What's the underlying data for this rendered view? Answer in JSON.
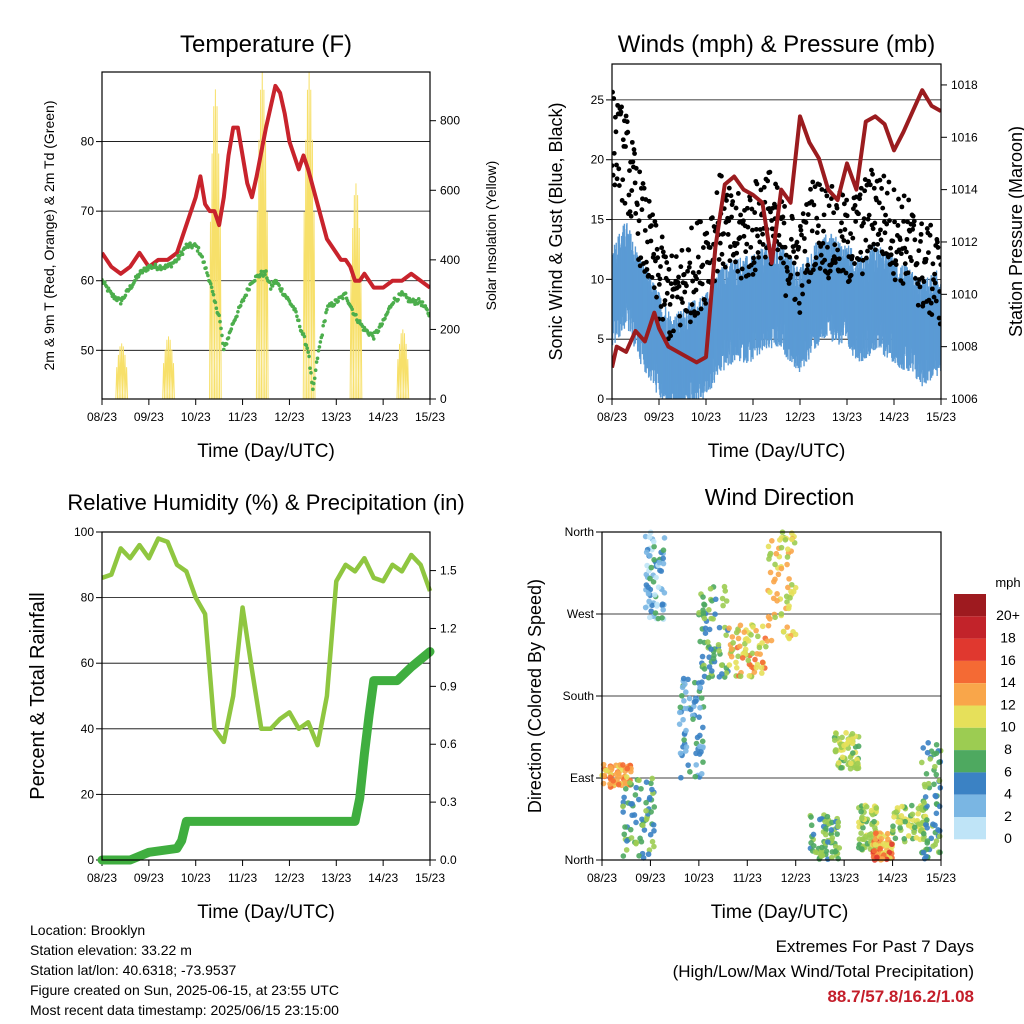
{
  "chart_data": [
    {
      "type": "line",
      "title": "Temperature (F)",
      "xlabel": "Time (Day/UTC)",
      "ylabel": "2m & 9m T (Red, Orange) & 2m Td (Green)",
      "y2label": "Solar Insolation (Yellow)",
      "x_ticks": [
        "08/23",
        "09/23",
        "10/23",
        "11/23",
        "12/23",
        "13/23",
        "14/23",
        "15/23"
      ],
      "ylim": [
        43,
        90
      ],
      "y_ticks": [
        50,
        60,
        70,
        80
      ],
      "y2lim": [
        0,
        940
      ],
      "y2_ticks": [
        0,
        200,
        400,
        600,
        800
      ],
      "grid": "horizontal",
      "colors": {
        "temp": "#c8232c",
        "dewpoint": "#4cae4c",
        "solar": "#f7e06a"
      },
      "series": [
        {
          "role": "temp",
          "x": [
            0,
            0.2,
            0.4,
            0.6,
            0.8,
            1,
            1.2,
            1.4,
            1.6,
            1.8,
            2,
            2.1,
            2.2,
            2.3,
            2.4,
            2.5,
            2.6,
            2.7,
            2.8,
            2.9,
            3,
            3.1,
            3.2,
            3.3,
            3.5,
            3.7,
            3.8,
            3.9,
            4,
            4.1,
            4.2,
            4.3,
            4.4,
            4.6,
            4.8,
            5,
            5.1,
            5.2,
            5.3,
            5.4,
            5.5,
            5.6,
            5.8,
            6,
            6.2,
            6.4,
            6.6,
            6.8,
            7
          ],
          "y": [
            64,
            62,
            61,
            62,
            64,
            62,
            63,
            63,
            64,
            68,
            72,
            75,
            71,
            70,
            70,
            68,
            72,
            78,
            82,
            82,
            78,
            74,
            72,
            75,
            82,
            88,
            87,
            84,
            80,
            78,
            76,
            78,
            76,
            71,
            66,
            64,
            63,
            63,
            62,
            60,
            60,
            61,
            59,
            59,
            60,
            60,
            61,
            60,
            59
          ]
        },
        {
          "role": "dewpoint",
          "x": [
            0,
            0.2,
            0.4,
            0.6,
            0.8,
            1,
            1.2,
            1.4,
            1.6,
            1.8,
            2,
            2.1,
            2.2,
            2.3,
            2.4,
            2.5,
            2.6,
            2.7,
            2.8,
            3,
            3.2,
            3.4,
            3.5,
            3.6,
            3.7,
            3.8,
            3.9,
            4,
            4.1,
            4.2,
            4.3,
            4.4,
            4.5,
            4.6,
            4.8,
            5,
            5.2,
            5.4,
            5.6,
            5.8,
            6,
            6.2,
            6.4,
            6.6,
            6.8,
            7
          ],
          "y": [
            60,
            58,
            57,
            59,
            61,
            62,
            62,
            62,
            63,
            65,
            65,
            64,
            62,
            60,
            57,
            55,
            50,
            52,
            54,
            57,
            60,
            61,
            61,
            59,
            60,
            59,
            58,
            57,
            56,
            54,
            52,
            50,
            44,
            49,
            56,
            57,
            58,
            55,
            53,
            52,
            54,
            57,
            58,
            57,
            57,
            55
          ]
        }
      ],
      "solar_days": [
        {
          "day": 0,
          "peak": 160
        },
        {
          "day": 1,
          "peak": 180
        },
        {
          "day": 2,
          "peak": 890
        },
        {
          "day": 3,
          "peak": 940
        },
        {
          "day": 4,
          "peak": 940
        },
        {
          "day": 5,
          "peak": 620
        },
        {
          "day": 6,
          "peak": 200
        },
        {
          "day": 7,
          "peak": 200
        }
      ]
    },
    {
      "type": "scatter",
      "title": "Winds (mph) & Pressure (mb)",
      "xlabel": "Time (Day/UTC)",
      "ylabel": "Sonic Wind & Gust (Blue, Black)",
      "y2label": "Station Pressure (Maroon)",
      "x_ticks": [
        "08/23",
        "09/23",
        "10/23",
        "11/23",
        "12/23",
        "13/23",
        "14/23",
        "15/23"
      ],
      "ylim": [
        0,
        28
      ],
      "y_ticks": [
        0,
        5,
        10,
        15,
        20,
        25
      ],
      "y2lim": [
        1006,
        1018.8
      ],
      "y2_ticks": [
        1006,
        1008,
        1010,
        1012,
        1014,
        1016,
        1018
      ],
      "grid": "horizontal",
      "colors": {
        "wind": "#5b9bd5",
        "gust": "#000000",
        "pressure": "#9b1c1f"
      },
      "wind_profile": {
        "x": [
          0,
          0.3,
          0.6,
          1,
          1.3,
          1.6,
          2,
          2.3,
          2.6,
          3,
          3.3,
          3.6,
          4,
          4.3,
          4.6,
          5,
          5.3,
          5.6,
          6,
          6.3,
          6.6,
          7
        ],
        "y": [
          10,
          12,
          9,
          6,
          4,
          5,
          6,
          8,
          9,
          9,
          10,
          10,
          8,
          10,
          11,
          10,
          9,
          10,
          9,
          8,
          7,
          8
        ]
      },
      "gust_profile": {
        "x": [
          0,
          0.3,
          0.6,
          1,
          1.3,
          1.6,
          2,
          2.3,
          2.6,
          3,
          3.3,
          3.6,
          4,
          4.3,
          4.6,
          5,
          5.3,
          5.6,
          6,
          6.3,
          6.6,
          7
        ],
        "y": [
          22,
          20,
          15,
          10,
          8,
          10,
          12,
          15,
          13,
          14,
          16,
          13,
          11,
          15,
          14,
          13,
          14,
          16,
          14,
          13,
          11,
          10
        ]
      },
      "pressure": {
        "x": [
          0,
          0.1,
          0.3,
          0.5,
          0.7,
          0.9,
          1,
          1.2,
          1.4,
          1.6,
          1.8,
          2,
          2.2,
          2.4,
          2.6,
          2.8,
          3,
          3.2,
          3.4,
          3.6,
          3.8,
          4,
          4.2,
          4.4,
          4.6,
          4.8,
          5,
          5.2,
          5.4,
          5.6,
          5.8,
          6,
          6.2,
          6.4,
          6.6,
          6.8,
          7
        ],
        "y": [
          1007.2,
          1008,
          1007.8,
          1008.6,
          1008.2,
          1009.3,
          1008.7,
          1008,
          1007.8,
          1007.6,
          1007.4,
          1007.6,
          1011.8,
          1014.2,
          1014.5,
          1014,
          1013.8,
          1013.5,
          1011.2,
          1014,
          1013.5,
          1016.8,
          1015.8,
          1015.2,
          1014,
          1013.6,
          1015,
          1014,
          1016.6,
          1016.8,
          1016.5,
          1015.5,
          1016.2,
          1017,
          1017.8,
          1017.2,
          1017
        ]
      }
    },
    {
      "type": "line",
      "title": "Relative Humidity (%) & Precipitation (in)",
      "xlabel": "Time (Day/UTC)",
      "ylabel": "Percent & Total Rainfall",
      "x_ticks": [
        "08/23",
        "09/23",
        "10/23",
        "11/23",
        "12/23",
        "13/23",
        "14/23",
        "15/23"
      ],
      "ylim": [
        0,
        100
      ],
      "y_ticks": [
        0,
        20,
        40,
        60,
        80,
        100
      ],
      "y2lim": [
        0,
        1.7
      ],
      "y2_ticks": [
        "0.0",
        "0.3",
        "0.6",
        "0.9",
        "1.2",
        "1.5"
      ],
      "grid": "horizontal",
      "colors": {
        "rh": "#8fc640",
        "precip": "#3fae3f"
      },
      "series": [
        {
          "name": "rh",
          "x": [
            0,
            0.2,
            0.4,
            0.6,
            0.8,
            1,
            1.2,
            1.4,
            1.6,
            1.8,
            2,
            2.2,
            2.4,
            2.6,
            2.8,
            3,
            3.2,
            3.4,
            3.6,
            3.8,
            4,
            4.2,
            4.4,
            4.6,
            4.8,
            5,
            5.2,
            5.4,
            5.6,
            5.8,
            6,
            6.2,
            6.4,
            6.6,
            6.8,
            7
          ],
          "y": [
            86,
            87,
            95,
            92,
            96,
            92,
            98,
            97,
            90,
            88,
            80,
            75,
            40,
            36,
            50,
            77,
            58,
            40,
            40,
            43,
            45,
            40,
            42,
            35,
            50,
            85,
            90,
            88,
            92,
            86,
            85,
            90,
            88,
            93,
            90,
            82
          ]
        },
        {
          "name": "precip",
          "x": [
            0,
            0.6,
            0.8,
            1.0,
            1.6,
            1.7,
            1.8,
            2.0,
            2.2,
            2.4,
            3,
            4,
            5,
            5.4,
            5.5,
            5.6,
            5.7,
            5.8,
            6,
            6.3,
            6.6,
            6.8,
            7
          ],
          "y": [
            0,
            0,
            0.02,
            0.04,
            0.06,
            0.1,
            0.2,
            0.2,
            0.2,
            0.2,
            0.2,
            0.2,
            0.2,
            0.2,
            0.32,
            0.55,
            0.75,
            0.93,
            0.93,
            0.93,
            1.0,
            1.04,
            1.08
          ]
        }
      ]
    },
    {
      "type": "scatter",
      "title": "Wind Direction",
      "xlabel": "Time (Day/UTC)",
      "ylabel": "Direction (Colored By Speed)",
      "x_ticks": [
        "08/23",
        "09/23",
        "10/23",
        "11/23",
        "12/23",
        "13/23",
        "14/23",
        "15/23"
      ],
      "ylim": [
        0,
        360
      ],
      "y_ticks": [
        {
          "v": 0,
          "label": "North"
        },
        {
          "v": 90,
          "label": "East"
        },
        {
          "v": 180,
          "label": "South"
        },
        {
          "v": 270,
          "label": "West"
        },
        {
          "v": 360,
          "label": "North"
        }
      ],
      "grid": "horizontal",
      "colorbar": {
        "unit": "mph",
        "labels": [
          "20+",
          "18",
          "16",
          "14",
          "12",
          "10",
          "8",
          "6",
          "4",
          "2",
          "0"
        ],
        "colors": [
          "#9e1a1f",
          "#c2232a",
          "#e0382f",
          "#f46a34",
          "#f9a64a",
          "#e6e05a",
          "#9ccc52",
          "#4ea960",
          "#3b82c4",
          "#7ab6e3",
          "#bfe4f7"
        ]
      },
      "clusters": [
        {
          "x": [
            0,
            0.6
          ],
          "dir": [
            80,
            105
          ],
          "speed": [
            10,
            15
          ]
        },
        {
          "x": [
            0.4,
            1.1
          ],
          "dir": [
            0,
            90
          ],
          "speed": [
            3,
            8
          ]
        },
        {
          "x": [
            0.9,
            1.3
          ],
          "dir": [
            260,
            360
          ],
          "speed": [
            0,
            6
          ]
        },
        {
          "x": [
            1.6,
            2.1
          ],
          "dir": [
            90,
            200
          ],
          "speed": [
            1,
            7
          ]
        },
        {
          "x": [
            2.0,
            2.6
          ],
          "dir": [
            200,
            300
          ],
          "speed": [
            3,
            9
          ]
        },
        {
          "x": [
            2.6,
            3.4
          ],
          "dir": [
            200,
            260
          ],
          "speed": [
            7,
            14
          ]
        },
        {
          "x": [
            3.4,
            4.0
          ],
          "dir": [
            240,
            360
          ],
          "speed": [
            8,
            13
          ]
        },
        {
          "x": [
            4.3,
            4.9
          ],
          "dir": [
            0,
            50
          ],
          "speed": [
            4,
            9
          ]
        },
        {
          "x": [
            4.8,
            5.3
          ],
          "dir": [
            100,
            140
          ],
          "speed": [
            6,
            11
          ]
        },
        {
          "x": [
            5.3,
            5.7
          ],
          "dir": [
            10,
            60
          ],
          "speed": [
            6,
            10
          ]
        },
        {
          "x": [
            5.6,
            6.0
          ],
          "dir": [
            0,
            30
          ],
          "speed": [
            9,
            16
          ]
        },
        {
          "x": [
            6.0,
            6.7
          ],
          "dir": [
            20,
            60
          ],
          "speed": [
            6,
            11
          ]
        },
        {
          "x": [
            6.6,
            7.0
          ],
          "dir": [
            0,
            130
          ],
          "speed": [
            3,
            8
          ]
        }
      ]
    }
  ],
  "info": {
    "location": "Location: Brooklyn",
    "elevation": "Station elevation: 33.22 m",
    "latlon": "Station lat/lon: 40.6318; -73.9537",
    "created": "Figure created on Sun, 2025-06-15, at 23:55 UTC",
    "recent": "Most recent data timestamp: 2025/06/15 23:15:00"
  },
  "extremes": {
    "title": "Extremes For Past 7 Days",
    "subtitle": "(High/Low/Max Wind/Total Precipitation)",
    "values": "88.7/57.8/16.2/1.08"
  }
}
